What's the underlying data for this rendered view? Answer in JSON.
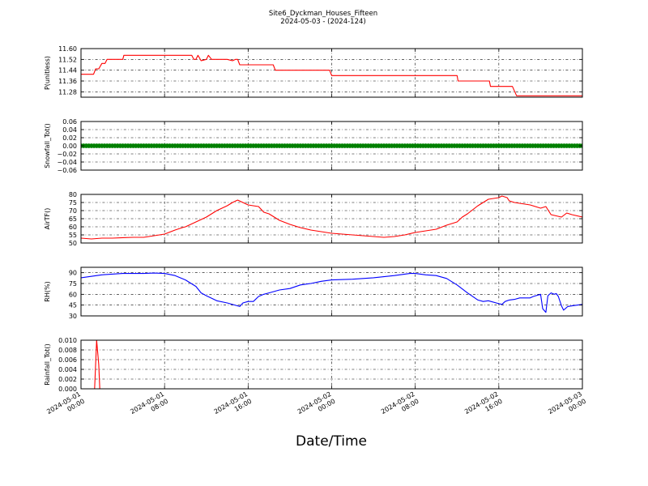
{
  "figure": {
    "title_line1": "Site6_Dyckman_Houses_Fifteen",
    "title_line2": "2024-05-03 - (2024-124)",
    "xlabel": "Date/Time"
  },
  "x_ticks": [
    {
      "t": 0,
      "line1": "2024-05-01",
      "line2": "00:00"
    },
    {
      "t": 8,
      "line1": "2024-05-01",
      "line2": "08:00"
    },
    {
      "t": 16,
      "line1": "2024-05-01",
      "line2": "16:00"
    },
    {
      "t": 24,
      "line1": "2024-05-02",
      "line2": "00:00"
    },
    {
      "t": 32,
      "line1": "2024-05-02",
      "line2": "08:00"
    },
    {
      "t": 40,
      "line1": "2024-05-02",
      "line2": "16:00"
    },
    {
      "t": 48,
      "line1": "2024-05-03",
      "line2": "00:00"
    }
  ],
  "chart_data": [
    {
      "type": "line",
      "ylabel": "P(unitless)",
      "x_unit": "hours from 2024-05-01 00:00",
      "xlim": [
        0,
        48
      ],
      "ylim": [
        11.24,
        11.6
      ],
      "yticks": [
        11.28,
        11.36,
        11.44,
        11.52,
        11.6
      ],
      "ytick_labels": [
        "11.28",
        "11.36",
        "11.44",
        "11.52",
        "11.60"
      ],
      "grid": true,
      "color": "#ff0000",
      "points": [
        [
          0,
          11.41
        ],
        [
          1.2,
          11.41
        ],
        [
          1.4,
          11.45
        ],
        [
          1.7,
          11.45
        ],
        [
          2,
          11.49
        ],
        [
          2.3,
          11.49
        ],
        [
          2.5,
          11.52
        ],
        [
          3,
          11.52
        ],
        [
          4,
          11.52
        ],
        [
          4.1,
          11.55
        ],
        [
          5,
          11.55
        ],
        [
          6,
          11.55
        ],
        [
          7,
          11.55
        ],
        [
          8,
          11.55
        ],
        [
          9,
          11.55
        ],
        [
          10.6,
          11.55
        ],
        [
          10.8,
          11.52
        ],
        [
          11,
          11.52
        ],
        [
          11.2,
          11.55
        ],
        [
          11.5,
          11.51
        ],
        [
          12,
          11.52
        ],
        [
          12.2,
          11.55
        ],
        [
          12.5,
          11.52
        ],
        [
          13,
          11.52
        ],
        [
          14,
          11.52
        ],
        [
          14.5,
          11.51
        ],
        [
          14.8,
          11.52
        ],
        [
          15,
          11.52
        ],
        [
          15.2,
          11.48
        ],
        [
          16,
          11.48
        ],
        [
          17,
          11.48
        ],
        [
          18,
          11.48
        ],
        [
          18.4,
          11.48
        ],
        [
          18.6,
          11.44
        ],
        [
          20,
          11.44
        ],
        [
          22,
          11.44
        ],
        [
          23.8,
          11.44
        ],
        [
          24,
          11.4
        ],
        [
          26,
          11.4
        ],
        [
          28,
          11.4
        ],
        [
          30,
          11.4
        ],
        [
          32,
          11.4
        ],
        [
          34,
          11.4
        ],
        [
          36,
          11.4
        ],
        [
          36.1,
          11.36
        ],
        [
          38,
          11.36
        ],
        [
          39.1,
          11.36
        ],
        [
          39.2,
          11.32
        ],
        [
          41,
          11.32
        ],
        [
          41.3,
          11.32
        ],
        [
          41.7,
          11.25
        ],
        [
          44,
          11.25
        ],
        [
          46,
          11.25
        ],
        [
          48,
          11.25
        ]
      ]
    },
    {
      "type": "scatter",
      "ylabel": "Snowfall_Tot()",
      "x_unit": "hours from 2024-05-01 00:00",
      "xlim": [
        0,
        48
      ],
      "ylim": [
        -0.06,
        0.06
      ],
      "yticks": [
        -0.06,
        -0.04,
        -0.02,
        0.0,
        0.02,
        0.04,
        0.06
      ],
      "ytick_labels": [
        "−0.06",
        "−0.04",
        "−0.02",
        "0.00",
        "0.02",
        "0.04",
        "0.06"
      ],
      "grid": true,
      "color": "#008000",
      "marker": "circle",
      "constant_value": 0.0,
      "x_range": [
        0,
        48
      ],
      "interval_hours": 0.25
    },
    {
      "type": "line",
      "ylabel": "AirTF()",
      "x_unit": "hours from 2024-05-01 00:00",
      "xlim": [
        0,
        48
      ],
      "ylim": [
        50,
        80
      ],
      "yticks": [
        50,
        55,
        60,
        65,
        70,
        75,
        80
      ],
      "ytick_labels": [
        "50",
        "55",
        "60",
        "65",
        "70",
        "75",
        "80"
      ],
      "grid": true,
      "color": "#ff0000",
      "points": [
        [
          0,
          53
        ],
        [
          1,
          52.5
        ],
        [
          2,
          53
        ],
        [
          3,
          53
        ],
        [
          4,
          53.3
        ],
        [
          5,
          53.5
        ],
        [
          6,
          53.5
        ],
        [
          7,
          54.5
        ],
        [
          8,
          55.5
        ],
        [
          9,
          58
        ],
        [
          9.7,
          59.5
        ],
        [
          10,
          60
        ],
        [
          11,
          63
        ],
        [
          12,
          66
        ],
        [
          13,
          70
        ],
        [
          14,
          73
        ],
        [
          14.5,
          75
        ],
        [
          15,
          76.5
        ],
        [
          15.5,
          75
        ],
        [
          16,
          73.5
        ],
        [
          17,
          72.5
        ],
        [
          17.5,
          69
        ],
        [
          18,
          68
        ],
        [
          19,
          64
        ],
        [
          20,
          61.5
        ],
        [
          21,
          59.5
        ],
        [
          22,
          58
        ],
        [
          23,
          57
        ],
        [
          24,
          56
        ],
        [
          25,
          55.5
        ],
        [
          26,
          55
        ],
        [
          27,
          54.5
        ],
        [
          28,
          54
        ],
        [
          29,
          53.5
        ],
        [
          30,
          54
        ],
        [
          31,
          55
        ],
        [
          32,
          56.5
        ],
        [
          33,
          57.5
        ],
        [
          34,
          58.5
        ],
        [
          35,
          61
        ],
        [
          36,
          63
        ],
        [
          36.5,
          66
        ],
        [
          37,
          68
        ],
        [
          38,
          73
        ],
        [
          38.5,
          75
        ],
        [
          39,
          77
        ],
        [
          40,
          78
        ],
        [
          40.3,
          79
        ],
        [
          40.8,
          78
        ],
        [
          41,
          76
        ],
        [
          41.5,
          75
        ],
        [
          42,
          74.5
        ],
        [
          43,
          73.5
        ],
        [
          44,
          71.5
        ],
        [
          44.5,
          72.5
        ],
        [
          45,
          67.5
        ],
        [
          46,
          66
        ],
        [
          46.5,
          68.5
        ],
        [
          47,
          67.5
        ],
        [
          48,
          66
        ]
      ]
    },
    {
      "type": "line",
      "ylabel": "RH(%)",
      "x_unit": "hours from 2024-05-01 00:00",
      "xlim": [
        0,
        48
      ],
      "ylim": [
        30,
        97.5
      ],
      "yticks": [
        30,
        45,
        60,
        75,
        90
      ],
      "ytick_labels": [
        "30",
        "45",
        "60",
        "75",
        "90"
      ],
      "grid": true,
      "color": "#0000ff",
      "points": [
        [
          0,
          83
        ],
        [
          2,
          87
        ],
        [
          4,
          89
        ],
        [
          6,
          89
        ],
        [
          7,
          89.5
        ],
        [
          8,
          89
        ],
        [
          9,
          86
        ],
        [
          10,
          80
        ],
        [
          11,
          71
        ],
        [
          11.5,
          62
        ],
        [
          12,
          58
        ],
        [
          13,
          51
        ],
        [
          14,
          48
        ],
        [
          15,
          44
        ],
        [
          15.2,
          43
        ],
        [
          15.5,
          48
        ],
        [
          16,
          50
        ],
        [
          16.5,
          50
        ],
        [
          17,
          57
        ],
        [
          17.5,
          60
        ],
        [
          18,
          62
        ],
        [
          19,
          66
        ],
        [
          20,
          68
        ],
        [
          21,
          73
        ],
        [
          22,
          75
        ],
        [
          23,
          78
        ],
        [
          24,
          80
        ],
        [
          26,
          81
        ],
        [
          28,
          83
        ],
        [
          30,
          86
        ],
        [
          31,
          88
        ],
        [
          31.5,
          89
        ],
        [
          32,
          89
        ],
        [
          33,
          87
        ],
        [
          34,
          86
        ],
        [
          35,
          82
        ],
        [
          36,
          73
        ],
        [
          37,
          62
        ],
        [
          38,
          52
        ],
        [
          38.5,
          50
        ],
        [
          39,
          51
        ],
        [
          40,
          47
        ],
        [
          40.3,
          46
        ],
        [
          40.6,
          50
        ],
        [
          41,
          52
        ],
        [
          41.5,
          53
        ],
        [
          42,
          55
        ],
        [
          43,
          55
        ],
        [
          43.3,
          57
        ],
        [
          44,
          60
        ],
        [
          44.2,
          40
        ],
        [
          44.5,
          35
        ],
        [
          44.7,
          58
        ],
        [
          45,
          62
        ],
        [
          45.3,
          60
        ],
        [
          45.5,
          61
        ],
        [
          45.7,
          57
        ],
        [
          46,
          44
        ],
        [
          46.2,
          38
        ],
        [
          46.6,
          43
        ],
        [
          47,
          44
        ],
        [
          48,
          46
        ]
      ]
    },
    {
      "type": "line",
      "ylabel": "Rainfall_Tot()",
      "x_unit": "hours from 2024-05-01 00:00",
      "xlim": [
        0,
        48
      ],
      "ylim": [
        0,
        0.01
      ],
      "yticks": [
        0.0,
        0.002,
        0.004,
        0.006,
        0.008,
        0.01
      ],
      "ytick_labels": [
        "0.000",
        "0.002",
        "0.004",
        "0.006",
        "0.008",
        "0.010"
      ],
      "grid": true,
      "color": "#ff0000",
      "points": [
        [
          0,
          0
        ],
        [
          1.3,
          0
        ],
        [
          1.5,
          0.01
        ],
        [
          1.7,
          0.005
        ],
        [
          1.8,
          0
        ],
        [
          48,
          0
        ]
      ]
    }
  ]
}
